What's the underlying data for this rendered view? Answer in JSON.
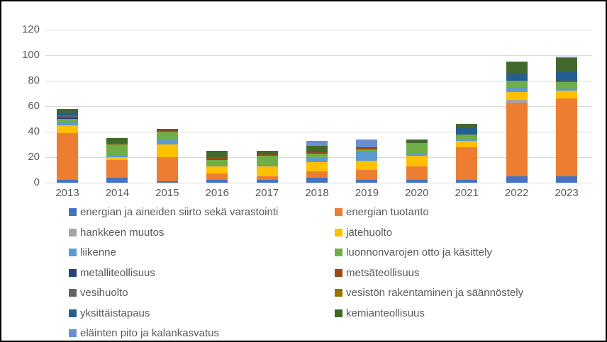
{
  "chart_data": {
    "type": "bar",
    "stacked": true,
    "title": "",
    "xlabel": "",
    "ylabel": "",
    "ylim": [
      0,
      120
    ],
    "yticks": [
      0,
      20,
      40,
      60,
      80,
      100,
      120
    ],
    "grid": true,
    "legend_position": "bottom",
    "legend_columns": 2,
    "categories": [
      "2013",
      "2014",
      "2015",
      "2016",
      "2017",
      "2018",
      "2019",
      "2020",
      "2021",
      "2022",
      "2023"
    ],
    "series": [
      {
        "name": "energian ja aineiden siirto sekä varastointi",
        "color": "#4472C4",
        "values": [
          2,
          4,
          1,
          2,
          2,
          4,
          2,
          2,
          2,
          5,
          5
        ]
      },
      {
        "name": "energian tuotanto",
        "color": "#ED7D31",
        "values": [
          37,
          14,
          19,
          5,
          3,
          5,
          8,
          11,
          26,
          58,
          61
        ]
      },
      {
        "name": "hankkeen muutos",
        "color": "#A5A5A5",
        "values": [
          0,
          0,
          0,
          0,
          0,
          0,
          0,
          0,
          0,
          2,
          0
        ]
      },
      {
        "name": "jätehuolto",
        "color": "#FFC000",
        "values": [
          6,
          2,
          10,
          6,
          8,
          7,
          7,
          8,
          5,
          6,
          6
        ]
      },
      {
        "name": "liikenne",
        "color": "#5B9BD5",
        "values": [
          2,
          1,
          4,
          1,
          1,
          4,
          7,
          2,
          1,
          4,
          2
        ]
      },
      {
        "name": "luonnonvarojen otto ja käsittely",
        "color": "#70AD47",
        "values": [
          3,
          9,
          6,
          4,
          7,
          3,
          2,
          8,
          4,
          5,
          5
        ]
      },
      {
        "name": "metalliteollisuus",
        "color": "#264478",
        "values": [
          1,
          0,
          0,
          0,
          0,
          0,
          0,
          0,
          0,
          0,
          0
        ]
      },
      {
        "name": "metsäteollisuus",
        "color": "#9E480E",
        "values": [
          0,
          1,
          1,
          2,
          1,
          1,
          1,
          0,
          0,
          0,
          1
        ]
      },
      {
        "name": "vesihuolto",
        "color": "#636363",
        "values": [
          2,
          0,
          0,
          0,
          0,
          0,
          0,
          0,
          0,
          0,
          0
        ]
      },
      {
        "name": "vesistön rakentaminen ja säännöstely",
        "color": "#997300",
        "values": [
          0,
          0,
          0,
          0,
          0,
          0,
          0,
          0,
          0,
          0,
          0
        ]
      },
      {
        "name": "yksittäistapaus",
        "color": "#255E91",
        "values": [
          2,
          0,
          1,
          0,
          0,
          1,
          0,
          0,
          5,
          6,
          7
        ]
      },
      {
        "name": "kemianteollisuus",
        "color": "#43682B",
        "values": [
          3,
          4,
          0,
          5,
          3,
          4,
          1,
          3,
          3,
          9,
          11
        ]
      },
      {
        "name": "eläinten pito ja kalankasvatus",
        "color": "#698ED0",
        "values": [
          0,
          0,
          0,
          0,
          0,
          4,
          6,
          0,
          0,
          0,
          1
        ]
      }
    ]
  },
  "layout_colors": {
    "gridline": "#D9D9D9",
    "axis_text": "#595959",
    "frame_border": "#000000",
    "background": "#FFFFFF"
  }
}
